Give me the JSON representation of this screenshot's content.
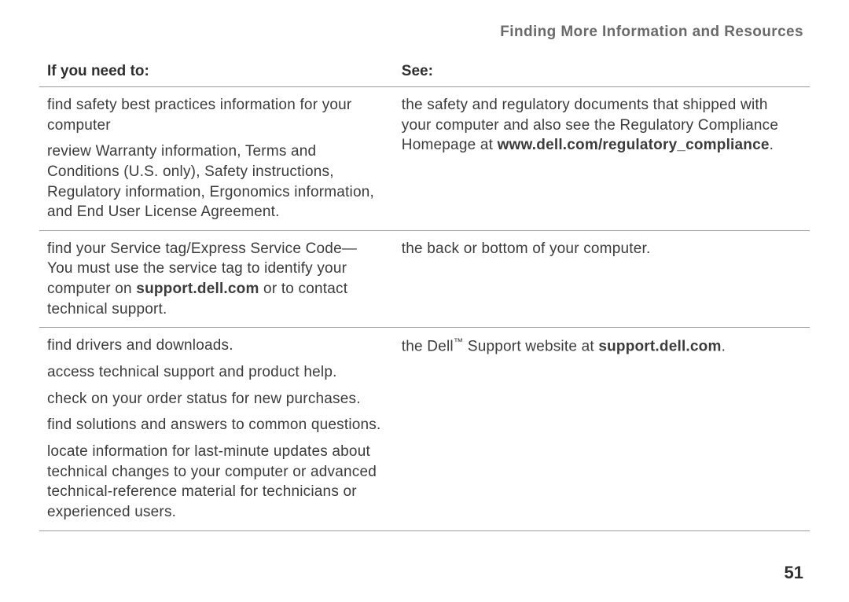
{
  "running_head": "Finding More Information and Resources",
  "page_number": "51",
  "table": {
    "header_left": "If you need to:",
    "header_right": "See:",
    "rows": [
      {
        "left_p1": "find safety best practices information for your computer",
        "left_p2": "review Warranty information, Terms and Conditions (U.S. only), Safety instructions, Regulatory information, Ergonomics information, and End User License Agreement.",
        "right_pre": "the safety and regulatory documents that shipped with your computer and also see the Regulatory Compliance Homepage at ",
        "right_bold": "www.dell.com/regulatory_compliance",
        "right_post": "."
      },
      {
        "left_pre": "find your Service tag/Express Service Code— You must use the service tag to identify your computer on ",
        "left_bold": "support.dell.com",
        "left_post": " or to contact technical support.",
        "right_p1": "the back or bottom of your computer."
      },
      {
        "left_p1": "find drivers and downloads.",
        "left_p2": "access technical support and product help.",
        "left_p3": "check on your order status for new purchases.",
        "left_p4": "find solutions and answers to common questions.",
        "left_p5": "locate information for last-minute updates about technical changes to your computer or advanced technical-reference material for technicians or experienced users.",
        "right_pre": "the Dell",
        "right_tm": "™",
        "right_mid": " Support website at ",
        "right_bold": "support.dell.com",
        "right_post": "."
      }
    ]
  }
}
